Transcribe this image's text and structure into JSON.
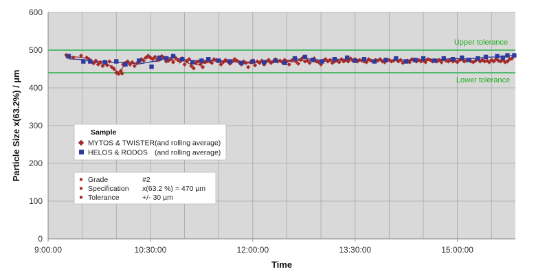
{
  "chart_data": {
    "type": "scatter",
    "title": "",
    "xlabel": "Time",
    "ylabel": "Particle Size x(63.2%) / µm",
    "x_tick_labels": [
      "9:00:00",
      "10:30:00",
      "12:00:00",
      "13:30:00",
      "15:00:00"
    ],
    "x_tick_values_min": [
      540,
      630,
      720,
      810,
      900
    ],
    "xlim_min": [
      540,
      951
    ],
    "ylim": [
      0,
      600
    ],
    "y_ticks": [
      0,
      100,
      200,
      300,
      400,
      500,
      600
    ],
    "y_tick_labels": [
      "0",
      "100",
      "200",
      "300",
      "400",
      "500",
      "600"
    ],
    "grid": true,
    "background_color": "#d9d9d9",
    "reference_lines": [
      {
        "name": "Upper tolerance",
        "value": 500,
        "color": "#22b14c"
      },
      {
        "name": "Lower tolerance",
        "value": 440,
        "color": "#22b14c"
      }
    ],
    "series": [
      {
        "name": "MYTOS & TWISTER",
        "marker": "diamond",
        "color": "#a52a2a",
        "line_color": "#a52a2a",
        "x_min": [
          556,
          557,
          562,
          569,
          574,
          576,
          578,
          580,
          582,
          584,
          586,
          588,
          590,
          592,
          594,
          596,
          598,
          600,
          602,
          604,
          605,
          606,
          608,
          610,
          612,
          614,
          616,
          618,
          620,
          622,
          624,
          626,
          628,
          630,
          632,
          634,
          636,
          638,
          640,
          642,
          644,
          646,
          648,
          650,
          652,
          654,
          656,
          658,
          660,
          662,
          664,
          666,
          668,
          670,
          672,
          674,
          676,
          678,
          680,
          682,
          684,
          686,
          688,
          690,
          692,
          694,
          696,
          698,
          700,
          702,
          704,
          706,
          708,
          710,
          712,
          714,
          716,
          718,
          720,
          722,
          724,
          726,
          728,
          730,
          732,
          734,
          736,
          738,
          740,
          742,
          744,
          746,
          748,
          750,
          752,
          754,
          756,
          758,
          760,
          762,
          764,
          766,
          768,
          770,
          772,
          774,
          776,
          778,
          780,
          782,
          784,
          786,
          788,
          790,
          792,
          794,
          796,
          798,
          800,
          802,
          804,
          806,
          808,
          810,
          812,
          814,
          816,
          818,
          820,
          822,
          824,
          826,
          828,
          830,
          832,
          834,
          836,
          838,
          840,
          842,
          844,
          846,
          848,
          850,
          852,
          854,
          856,
          858,
          860,
          862,
          864,
          866,
          868,
          870,
          872,
          874,
          876,
          878,
          880,
          882,
          884,
          886,
          888,
          890,
          892,
          894,
          896,
          898,
          900,
          902,
          904,
          906,
          908,
          910,
          912,
          914,
          916,
          918,
          920,
          922,
          924,
          926,
          928,
          930,
          932,
          934,
          936,
          938,
          940,
          942,
          944,
          946,
          948
        ],
        "values": [
          487,
          482,
          480,
          485,
          480,
          476,
          470,
          465,
          472,
          462,
          468,
          458,
          465,
          460,
          470,
          455,
          450,
          440,
          437,
          445,
          438,
          462,
          466,
          470,
          462,
          468,
          458,
          465,
          470,
          476,
          472,
          480,
          485,
          480,
          476,
          482,
          474,
          478,
          484,
          480,
          470,
          472,
          476,
          468,
          480,
          474,
          470,
          478,
          462,
          470,
          476,
          458,
          452,
          466,
          470,
          462,
          455,
          468,
          472,
          470,
          466,
          476,
          474,
          470,
          462,
          468,
          474,
          470,
          464,
          470,
          476,
          472,
          468,
          462,
          470,
          466,
          455,
          468,
          472,
          460,
          470,
          466,
          472,
          462,
          470,
          474,
          466,
          470,
          476,
          470,
          472,
          468,
          474,
          470,
          462,
          472,
          476,
          470,
          464,
          474,
          480,
          470,
          472,
          466,
          474,
          478,
          470,
          468,
          462,
          472,
          476,
          470,
          474,
          466,
          470,
          472,
          468,
          476,
          470,
          474,
          470,
          478,
          472,
          476,
          470,
          474,
          472,
          470,
          468,
          476,
          472,
          470,
          474,
          472,
          476,
          470,
          468,
          472,
          474,
          470,
          472,
          476,
          470,
          474,
          466,
          470,
          472,
          468,
          476,
          472,
          470,
          474,
          470,
          472,
          468,
          476,
          474,
          470,
          472,
          470,
          474,
          468,
          476,
          472,
          470,
          474,
          470,
          472,
          468,
          474,
          476,
          470,
          472,
          474,
          470,
          468,
          472,
          476,
          470,
          474,
          470,
          472,
          468,
          474,
          470,
          476,
          472,
          470,
          474,
          468,
          470,
          476,
          478
        ]
      },
      {
        "name": "HELOS & RODOS",
        "marker": "square",
        "color": "#2e3a9e",
        "line_color": "#2e3a9e",
        "x_min": [
          558,
          571,
          577,
          590,
          600,
          608,
          620,
          631,
          638,
          644,
          650,
          658,
          667,
          675,
          681,
          690,
          700,
          710,
          720,
          730,
          740,
          748,
          757,
          766,
          773,
          781,
          792,
          803,
          810,
          818,
          827,
          837,
          846,
          855,
          863,
          870,
          880,
          888,
          896,
          904,
          910,
          918,
          925,
          935,
          940,
          944,
          950
        ],
        "values": [
          484,
          470,
          470,
          468,
          470,
          462,
          472,
          456,
          480,
          478,
          484,
          476,
          468,
          472,
          476,
          472,
          470,
          466,
          470,
          468,
          472,
          466,
          478,
          482,
          474,
          470,
          476,
          480,
          472,
          476,
          470,
          474,
          478,
          470,
          474,
          478,
          472,
          478,
          476,
          480,
          474,
          478,
          482,
          484,
          480,
          486,
          486
        ]
      }
    ],
    "legend": {
      "title": "Sample",
      "entries": [
        {
          "label": "MYTOS & TWISTER",
          "note": "(and rolling average)"
        },
        {
          "label": "HELOS & RODOS",
          "note": "(and rolling average)"
        }
      ],
      "placement": "center-left"
    },
    "info_box": {
      "rows": [
        {
          "label": "Grade",
          "value": "#2"
        },
        {
          "label": "Specification",
          "value": "x(63.2 %) = 470 µm"
        },
        {
          "label": "Tolerance",
          "value": "+/- 30 µm"
        }
      ],
      "placement": "lower-left"
    }
  }
}
